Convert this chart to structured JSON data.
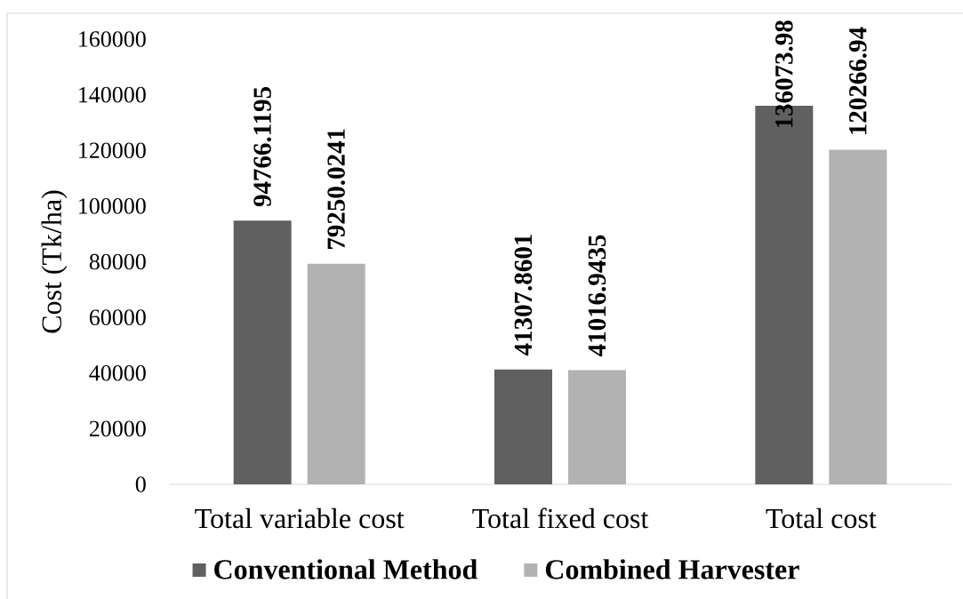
{
  "chart_data": {
    "type": "bar",
    "ylabel": "Cost (Tk/ha)",
    "categories": [
      "Total variable cost",
      "Total fixed cost",
      "Total cost"
    ],
    "series": [
      {
        "name": "Conventional Method",
        "color": "#606060",
        "values": [
          94766.1195,
          41307.8601,
          136073.98
        ]
      },
      {
        "name": "Combined Harvester",
        "color": "#b2b2b2",
        "values": [
          79250.0241,
          41016.9435,
          120266.94
        ]
      }
    ],
    "ylim": [
      0,
      160000
    ],
    "yticks": [
      0,
      20000,
      40000,
      60000,
      80000,
      100000,
      120000,
      140000,
      160000
    ],
    "data_labels": true,
    "legend": "bottom",
    "grid": false
  }
}
